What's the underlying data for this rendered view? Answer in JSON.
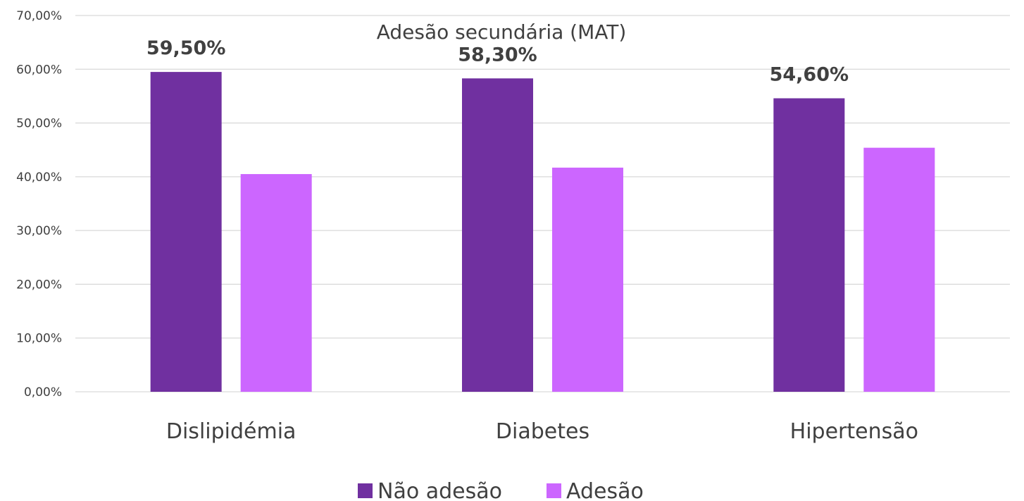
{
  "chart_data": {
    "type": "bar",
    "title": "Adesão secundária (MAT)",
    "categories": [
      "Dislipidémia",
      "Diabetes",
      "Hipertensão"
    ],
    "series": [
      {
        "name": "Não adesão",
        "values": [
          59.5,
          58.3,
          54.6
        ],
        "color": "#7030a0",
        "labels": [
          "59,50%",
          "58,30%",
          "54,60%"
        ]
      },
      {
        "name": "Adesão",
        "values": [
          40.5,
          41.7,
          45.4
        ],
        "color": "#cc66ff",
        "labels": [
          "",
          "",
          ""
        ]
      }
    ],
    "ylim": [
      0,
      70
    ],
    "y_ticks": [
      "0,00%",
      "10,00%",
      "20,00%",
      "30,00%",
      "40,00%",
      "50,00%",
      "60,00%",
      "70,00%"
    ],
    "y_tick_values": [
      0,
      10,
      20,
      30,
      40,
      50,
      60,
      70
    ],
    "grid": true,
    "legend_position": "bottom",
    "gridline_color": "#d9d9d9"
  }
}
